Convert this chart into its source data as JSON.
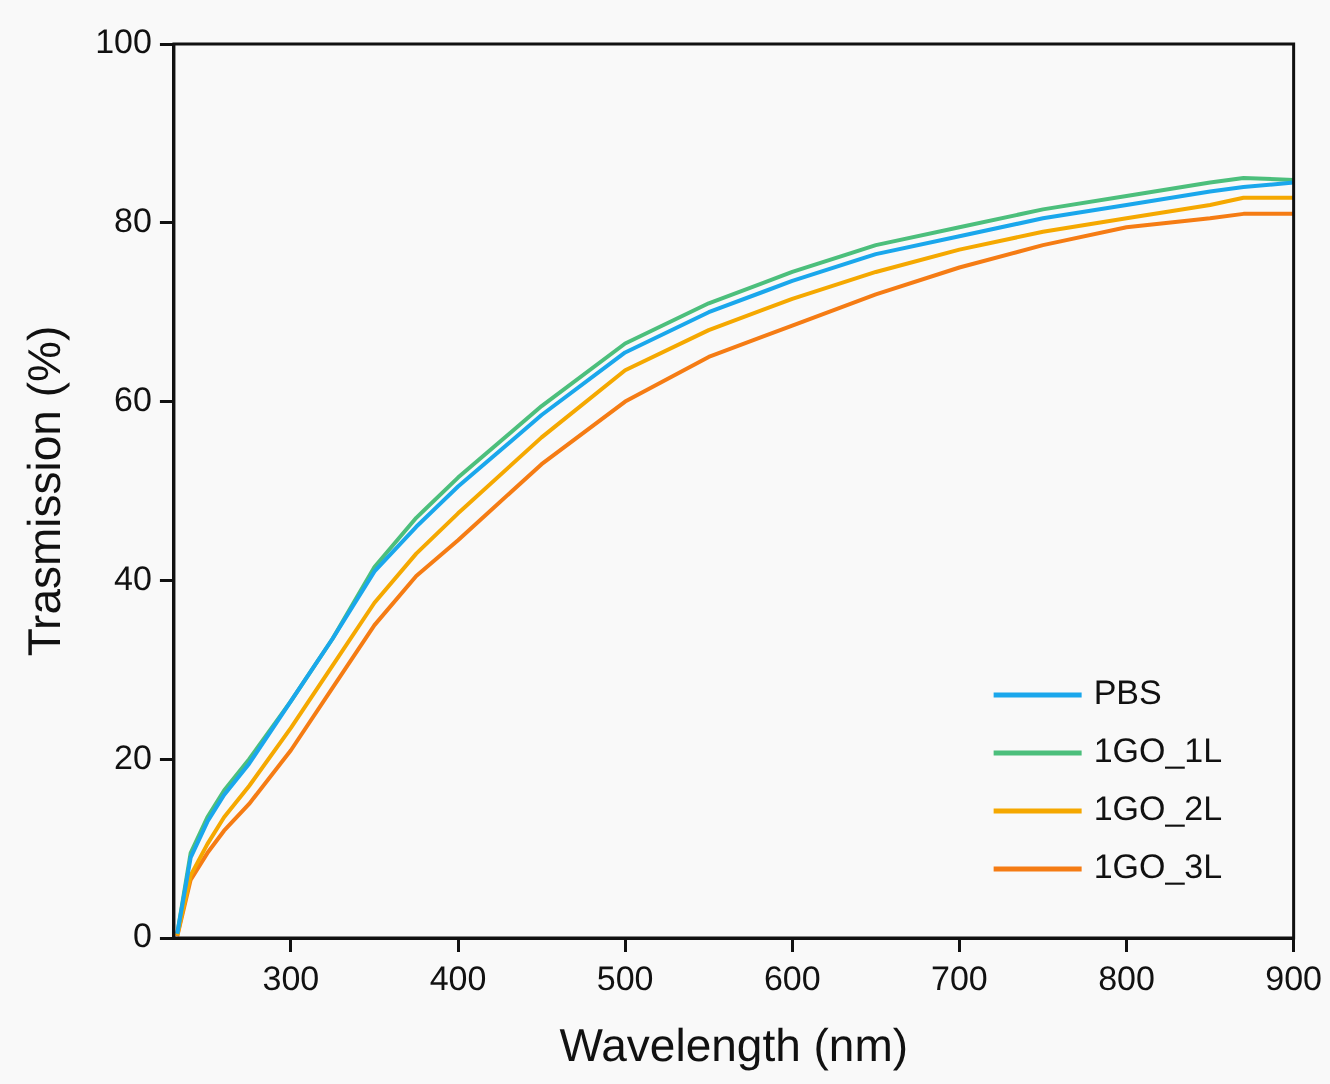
{
  "chart_data": {
    "type": "line",
    "xlabel": "Wavelength (nm)",
    "ylabel": "Trasmission (%)",
    "x": [
      232,
      240,
      250,
      260,
      275,
      300,
      325,
      350,
      375,
      400,
      450,
      500,
      550,
      600,
      650,
      700,
      750,
      800,
      850,
      870,
      900
    ],
    "xlim": [
      230,
      900
    ],
    "xticks": [
      300,
      400,
      500,
      600,
      700,
      800,
      900
    ],
    "ylim": [
      0,
      100
    ],
    "yticks": [
      0,
      20,
      40,
      60,
      80,
      100
    ],
    "grid": false,
    "legend": "bottom right",
    "marker": "none",
    "line_style": "solid",
    "series": [
      {
        "name": "PBS",
        "color": "#1aa7ec",
        "values": [
          0.5,
          9,
          13,
          16,
          19.5,
          26.5,
          33.5,
          41,
          46,
          50.5,
          58.5,
          65.5,
          70,
          73.5,
          76.5,
          78.5,
          80.5,
          82,
          83.5,
          84,
          84.5
        ]
      },
      {
        "name": "1GO_1L",
        "color": "#4cbf7c",
        "values": [
          0.5,
          9.5,
          13.5,
          16.5,
          20,
          26.5,
          33.5,
          41.5,
          47,
          51.5,
          59.5,
          66.5,
          71,
          74.5,
          77.5,
          79.5,
          81.5,
          83,
          84.5,
          85,
          84.8
        ]
      },
      {
        "name": "1GO_2L",
        "color": "#f5a800",
        "values": [
          0.3,
          7,
          10.5,
          13.5,
          17,
          23.5,
          30.5,
          37.5,
          43,
          47.5,
          56,
          63.5,
          68,
          71.5,
          74.5,
          77,
          79,
          80.5,
          82,
          82.8,
          82.8
        ]
      },
      {
        "name": "1GO_3L",
        "color": "#f57c14",
        "values": [
          0.2,
          6.5,
          9.5,
          12,
          15,
          21,
          28,
          35,
          40.5,
          44.5,
          53,
          60,
          65,
          68.5,
          72,
          75,
          77.5,
          79.5,
          80.5,
          81,
          81
        ]
      }
    ]
  }
}
